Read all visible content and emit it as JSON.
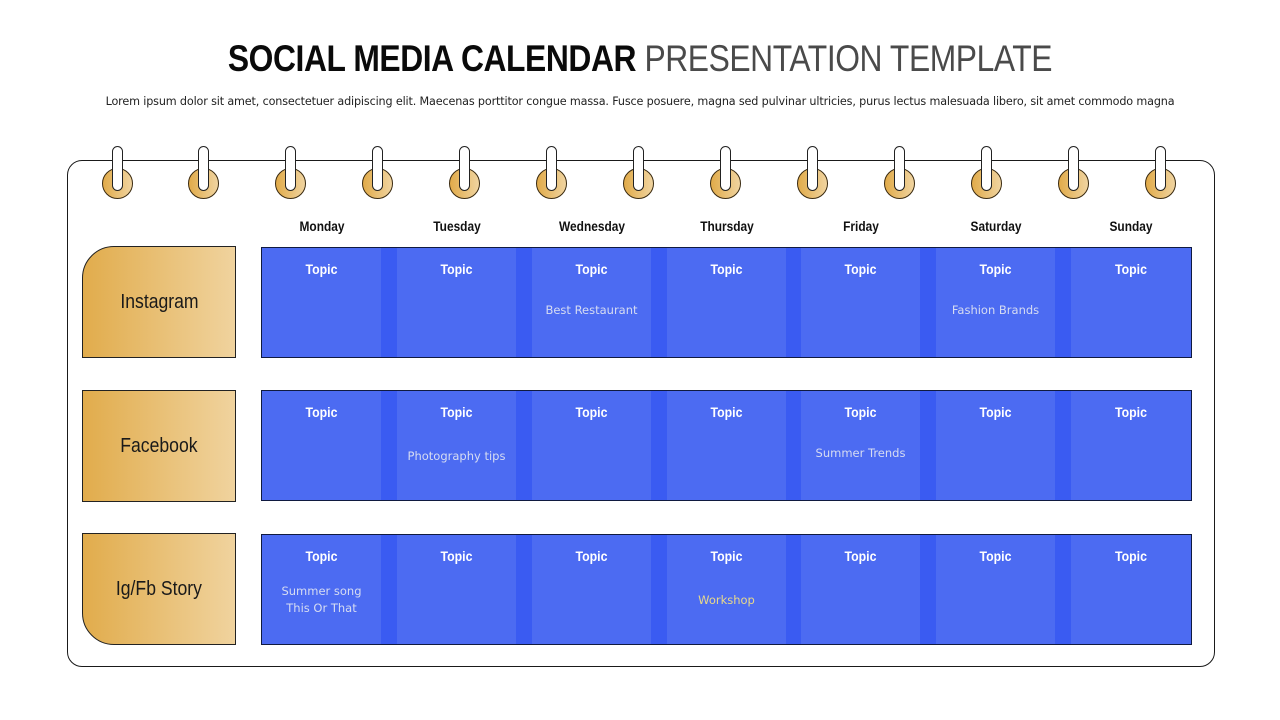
{
  "header": {
    "title_bold": "SOCIAL MEDIA CALENDAR",
    "title_light": "PRESENTATION TEMPLATE",
    "subtitle": "Lorem ipsum dolor sit amet, consectetuer adipiscing elit. Maecenas porttitor congue massa. Fusce posuere, magna sed pulvinar ultricies, purus lectus malesuada libero, sit amet commodo magna"
  },
  "colors": {
    "cell_blue": "#4c6bf2",
    "stripe_blue": "#3a5bf2",
    "platform_gold_start": "#e1ac4c",
    "platform_gold_end": "#f0d39e",
    "note_text": "#d6dcf2",
    "note_accent": "#e8d98a"
  },
  "calendar": {
    "ring_count": 13,
    "days": [
      "Monday",
      "Tuesday",
      "Wednesday",
      "Thursday",
      "Friday",
      "Saturday",
      "Sunday"
    ],
    "rows": [
      {
        "platform": "Instagram",
        "cells": [
          {
            "topic": "Topic",
            "note": ""
          },
          {
            "topic": "Topic",
            "note": ""
          },
          {
            "topic": "Topic",
            "note": "Best Restaurant"
          },
          {
            "topic": "Topic",
            "note": ""
          },
          {
            "topic": "Topic",
            "note": ""
          },
          {
            "topic": "Topic",
            "note": "Fashion Brands"
          },
          {
            "topic": "Topic",
            "note": ""
          }
        ]
      },
      {
        "platform": "Facebook",
        "cells": [
          {
            "topic": "Topic",
            "note": ""
          },
          {
            "topic": "Topic",
            "note": "Photography tips"
          },
          {
            "topic": "Topic",
            "note": ""
          },
          {
            "topic": "Topic",
            "note": ""
          },
          {
            "topic": "Topic",
            "note": "Summer Trends"
          },
          {
            "topic": "Topic",
            "note": ""
          },
          {
            "topic": "Topic",
            "note": ""
          }
        ]
      },
      {
        "platform": "Ig/Fb Story",
        "cells": [
          {
            "topic": "Topic",
            "note": "Summer song\nThis Or That"
          },
          {
            "topic": "Topic",
            "note": ""
          },
          {
            "topic": "Topic",
            "note": ""
          },
          {
            "topic": "Topic",
            "note": "Workshop"
          },
          {
            "topic": "Topic",
            "note": ""
          },
          {
            "topic": "Topic",
            "note": ""
          },
          {
            "topic": "Topic",
            "note": ""
          }
        ]
      }
    ]
  }
}
